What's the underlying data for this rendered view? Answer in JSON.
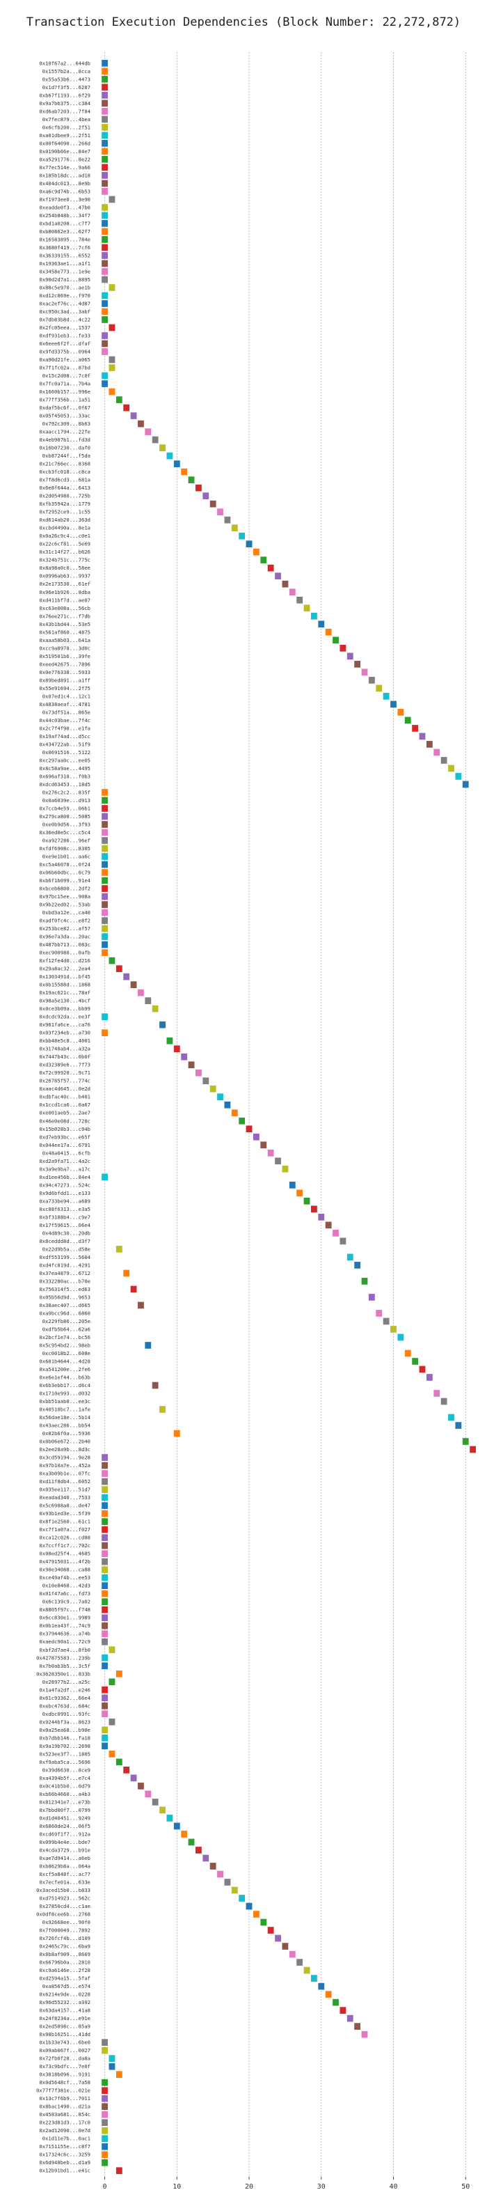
{
  "chart_data": {
    "type": "gantt",
    "title": "Transaction Execution Dependencies (Block Number: 22,272,872)",
    "xlabel": "",
    "ylabel": "",
    "xlim": [
      -1.5,
      52
    ],
    "xticks": [
      0,
      10,
      20,
      30,
      40,
      50
    ],
    "grid": true,
    "palette": [
      "#1f77b4",
      "#ff7f0e",
      "#2ca02c",
      "#d62728",
      "#9467bd",
      "#8c564b",
      "#e377c2",
      "#7f7f7f",
      "#bcbd22",
      "#17becf"
    ],
    "transactions": [
      {
        "label": "0x10f67a2...644db",
        "x": 0
      },
      {
        "label": "0x1557b2a...8cca",
        "x": 0
      },
      {
        "label": "0x55a53b6...4473",
        "x": 0
      },
      {
        "label": "0x1d7f3f5...6287",
        "x": 0
      },
      {
        "label": "0xb67f1193...6f29",
        "x": 0
      },
      {
        "label": "0x9a7bb375...c384",
        "x": 0
      },
      {
        "label": "0xd6ab7203...7f84",
        "x": 0
      },
      {
        "label": "0x7fec879...4bea",
        "x": 0
      },
      {
        "label": "0x6cfb200...2f51",
        "x": 0
      },
      {
        "label": "0xa01dbee9...2f51",
        "x": 0
      },
      {
        "label": "0x00f64090...266d",
        "x": 0
      },
      {
        "label": "0x0190b66e...84e7",
        "x": 0
      },
      {
        "label": "0xa5291776...8e22",
        "x": 0
      },
      {
        "label": "0x77ec514e...9a66",
        "x": 0
      },
      {
        "label": "0x185b18dc...ad18",
        "x": 0
      },
      {
        "label": "0x404dc013...8e9b",
        "x": 0
      },
      {
        "label": "0xa6c9d74b...6b53",
        "x": 0
      },
      {
        "label": "0xf1973ee0...3e90",
        "x": 1
      },
      {
        "label": "0xeadde0f3...47b0",
        "x": 0
      },
      {
        "label": "0x254b848b...34f7",
        "x": 0
      },
      {
        "label": "0xbd1a0208...c7f7",
        "x": 0
      },
      {
        "label": "0xb80862e3...62f7",
        "x": 0
      },
      {
        "label": "0x16583895...784e",
        "x": 0
      },
      {
        "label": "0x3680f419...7cf6",
        "x": 0
      },
      {
        "label": "0x36339155...6552",
        "x": 0
      },
      {
        "label": "0x19363ae1...a1f1",
        "x": 0
      },
      {
        "label": "0x3458e773...1e9e",
        "x": 0
      },
      {
        "label": "0x90d2d7a1...8895",
        "x": 0
      },
      {
        "label": "0x88c5e970...ae1b",
        "x": 1
      },
      {
        "label": "0xd12c869e...f970",
        "x": 0
      },
      {
        "label": "0xac2ef76c...4d87",
        "x": 0
      },
      {
        "label": "0xc950c3ad...3abf",
        "x": 0
      },
      {
        "label": "0x7db83b8d...4c22",
        "x": 0
      },
      {
        "label": "0x2fc05eea...1537",
        "x": 1
      },
      {
        "label": "0xdf931eb3...fe33",
        "x": 0
      },
      {
        "label": "0x6eee6f2f...dfaf",
        "x": 0
      },
      {
        "label": "0x9fd3375b...0964",
        "x": 0
      },
      {
        "label": "0xa90d21fe...a065",
        "x": 1
      },
      {
        "label": "0x7f1fc02a...87bd",
        "x": 1
      },
      {
        "label": "0x15c2d08...7c0f",
        "x": 0
      },
      {
        "label": "0x7fc0a71a...7b4a",
        "x": 0
      },
      {
        "label": "0x1660b157...996e",
        "x": 1
      },
      {
        "label": "0x77ff356b...1a51",
        "x": 2
      },
      {
        "label": "0xdaf5bc6f...0f67",
        "x": 3
      },
      {
        "label": "0x05f45053...33ac",
        "x": 4
      },
      {
        "label": "0x792c309...8b63",
        "x": 5
      },
      {
        "label": "0xaacc1794...22fe",
        "x": 6
      },
      {
        "label": "0x4eb907b1...fd3d",
        "x": 7
      },
      {
        "label": "0x16b07230...daf0",
        "x": 8
      },
      {
        "label": "0xb87244f...f5da",
        "x": 9
      },
      {
        "label": "0x21c766ec...8368",
        "x": 10
      },
      {
        "label": "0xcb3fc018...c8ca",
        "x": 11
      },
      {
        "label": "0x7f8d6cd3...681a",
        "x": 12
      },
      {
        "label": "0x6e8f644a...6413",
        "x": 13
      },
      {
        "label": "0x2d054980...725b",
        "x": 14
      },
      {
        "label": "0xfb35942a...1779",
        "x": 15
      },
      {
        "label": "0xf2952ce9...1c55",
        "x": 16
      },
      {
        "label": "0xd614ab20...363d",
        "x": 17
      },
      {
        "label": "0xcbd4490a...8e1a",
        "x": 18
      },
      {
        "label": "0x0a26c9c4...c0e1",
        "x": 19
      },
      {
        "label": "0x22c6cf81...5e69",
        "x": 20
      },
      {
        "label": "0x31c14f27...b626",
        "x": 21
      },
      {
        "label": "0x324b751c...775c",
        "x": 22
      },
      {
        "label": "0x8a98a0c0...58ee",
        "x": 23
      },
      {
        "label": "0x0996ab63...9937",
        "x": 24
      },
      {
        "label": "0x2e173530...61ef",
        "x": 25
      },
      {
        "label": "0x96e1b926...8dba",
        "x": 26
      },
      {
        "label": "0xd411bf7d...ae07",
        "x": 27
      },
      {
        "label": "0xc63e008a...56cb",
        "x": 28
      },
      {
        "label": "0x76ee271c...f7db",
        "x": 29
      },
      {
        "label": "0x43b1bd44...53e5",
        "x": 30
      },
      {
        "label": "0x561af860...4875",
        "x": 31
      },
      {
        "label": "0xaaa58b03...641a",
        "x": 32
      },
      {
        "label": "0xcc9a8978...3d0c",
        "x": 33
      },
      {
        "label": "0x519501b6...39fe",
        "x": 34
      },
      {
        "label": "0xeed42675...7896",
        "x": 35
      },
      {
        "label": "0x0e776338...5933",
        "x": 36
      },
      {
        "label": "0x89bed891...a1ff",
        "x": 37
      },
      {
        "label": "0x55e91694...2f75",
        "x": 38
      },
      {
        "label": "0x07ed1c4...12c1",
        "x": 39
      },
      {
        "label": "0x4838aeaf...4781",
        "x": 40
      },
      {
        "label": "0x73df51a...865e",
        "x": 41
      },
      {
        "label": "0x44c03bae...7f4c",
        "x": 42
      },
      {
        "label": "0x2c7f4f90...e1fa",
        "x": 43
      },
      {
        "label": "0x19af74ad...d5cc",
        "x": 44
      },
      {
        "label": "0x434722ab...51f9",
        "x": 45
      },
      {
        "label": "0x0691516...5122",
        "x": 46
      },
      {
        "label": "0xc297aa0c...ee05",
        "x": 47
      },
      {
        "label": "0x8c58a9ae...4495",
        "x": 48
      },
      {
        "label": "0x696af318...f0b3",
        "x": 49
      },
      {
        "label": "0xdcd63453...18d5",
        "x": 50
      },
      {
        "label": "0x276c2c2...835f",
        "x": 0
      },
      {
        "label": "0x0a6039e...d913",
        "x": 0
      },
      {
        "label": "0x7ccb4e59...06b1",
        "x": 0
      },
      {
        "label": "0x279ca800...5085",
        "x": 0
      },
      {
        "label": "0xe0b9d56...3f93",
        "x": 0
      },
      {
        "label": "0x36ed0e5c...c5c4",
        "x": 0
      },
      {
        "label": "0xa927286...96ef",
        "x": 0
      },
      {
        "label": "0xfdf6908c...8305",
        "x": 0
      },
      {
        "label": "0xe9e1b01...aa6c",
        "x": 0
      },
      {
        "label": "0xc5a46078...0f24",
        "x": 0
      },
      {
        "label": "0x06b60dbc...0c79",
        "x": 0
      },
      {
        "label": "0xb6f1b099...91e4",
        "x": 0
      },
      {
        "label": "0xbceb6800...2df2",
        "x": 0
      },
      {
        "label": "0x97bc15ee...908a",
        "x": 0
      },
      {
        "label": "0x9b22ed02...53ab",
        "x": 0
      },
      {
        "label": "0xbd3a12e...ca40",
        "x": 0
      },
      {
        "label": "0xadf0fc4c...e8f2",
        "x": 0
      },
      {
        "label": "0x253bce82...af57",
        "x": 0
      },
      {
        "label": "0x96e7a3da...20ac",
        "x": 0
      },
      {
        "label": "0x487bb713...083c",
        "x": 0
      },
      {
        "label": "0xec900980...0afb",
        "x": 0
      },
      {
        "label": "0xf12fe4d0...d216",
        "x": 1
      },
      {
        "label": "0x29a8ac32...2ea4",
        "x": 2
      },
      {
        "label": "0x1303491d...bf45",
        "x": 3
      },
      {
        "label": "0x0b15588d...1868",
        "x": 4
      },
      {
        "label": "0x19ac621c...78af",
        "x": 5
      },
      {
        "label": "0x98a5e130...4bcf",
        "x": 6
      },
      {
        "label": "0x0ce3b09a...bb99",
        "x": 7
      },
      {
        "label": "0xdcdc92da...ee3f",
        "x": 0
      },
      {
        "label": "0x961fa6ce...ca76",
        "x": 8
      },
      {
        "label": "0x03f234eb...a730",
        "x": 0
      },
      {
        "label": "0xbb48e5c8...4001",
        "x": 9
      },
      {
        "label": "0x31748ab4...a32a",
        "x": 10
      },
      {
        "label": "0x7447b43c...0b0f",
        "x": 11
      },
      {
        "label": "0xd32389e6...7f73",
        "x": 12
      },
      {
        "label": "0x72c99920...9c71",
        "x": 13
      },
      {
        "label": "0x26785f57...774c",
        "x": 14
      },
      {
        "label": "0xaac4d645...0e2d",
        "x": 15
      },
      {
        "label": "0xdbfac40c...b401",
        "x": 16
      },
      {
        "label": "0x1ccd1ca6...0a67",
        "x": 17
      },
      {
        "label": "0xe001aeb5...2ae7",
        "x": 18
      },
      {
        "label": "0x46e0e08d...728c",
        "x": 19
      },
      {
        "label": "0x15b028b3...c94b",
        "x": 20
      },
      {
        "label": "0xd7eb93bc...e65f",
        "x": 21
      },
      {
        "label": "0x044ee17a...6791",
        "x": 22
      },
      {
        "label": "0x48a0415...6cfb",
        "x": 23
      },
      {
        "label": "0xd2a9fa71...4a2c",
        "x": 24
      },
      {
        "label": "0x3a9e9ba7...a17c",
        "x": 25
      },
      {
        "label": "0xd1ee456b...84e4",
        "x": 0
      },
      {
        "label": "0x94c47273...524c",
        "x": 26
      },
      {
        "label": "0x9d6bfdd1...e133",
        "x": 27
      },
      {
        "label": "0xa733be94...a689",
        "x": 28
      },
      {
        "label": "0xc88f6313...e3a5",
        "x": 29
      },
      {
        "label": "0xbf3188b4...c9e7",
        "x": 30
      },
      {
        "label": "0x17f59615...06e4",
        "x": 31
      },
      {
        "label": "0x4d89c30...20db",
        "x": 32
      },
      {
        "label": "0x8ceddd8d...d3f7",
        "x": 33
      },
      {
        "label": "0x22d9b5a...d58e",
        "x": 2
      },
      {
        "label": "0xdf553199...5604",
        "x": 34
      },
      {
        "label": "0xd4fc819d...4291",
        "x": 35
      },
      {
        "label": "0x37ea4879...6712",
        "x": 3
      },
      {
        "label": "0x332280ac...b70e",
        "x": 36
      },
      {
        "label": "0x756314f5...ed63",
        "x": 4
      },
      {
        "label": "0x05b56d9d...9653",
        "x": 37
      },
      {
        "label": "0x38aec407...d665",
        "x": 5
      },
      {
        "label": "0xa9bcc96d...6860",
        "x": 38
      },
      {
        "label": "0x229fb86...205e",
        "x": 39
      },
      {
        "label": "0xdfb5b64...62a6",
        "x": 40
      },
      {
        "label": "0x2bcf1e74...bc56",
        "x": 41
      },
      {
        "label": "0x5c954bd2...98eb",
        "x": 6
      },
      {
        "label": "0xc0018b2...608e",
        "x": 42
      },
      {
        "label": "0x601b4644...4d28",
        "x": 43
      },
      {
        "label": "0xa541200e...2fe6",
        "x": 44
      },
      {
        "label": "0xe6e1ef44...b63b",
        "x": 45
      },
      {
        "label": "0x6b3ebb17...d6c4",
        "x": 7
      },
      {
        "label": "0x1710e993...d032",
        "x": 46
      },
      {
        "label": "0xbb51aab0...ee3c",
        "x": 47
      },
      {
        "label": "0x40510bc7...1afe",
        "x": 8
      },
      {
        "label": "0x56dae18e...5b14",
        "x": 48
      },
      {
        "label": "0x43aec286...bb54",
        "x": 49
      },
      {
        "label": "0x82b6f0a...5936",
        "x": 10
      },
      {
        "label": "0x0b06e672...2b40",
        "x": 50
      },
      {
        "label": "0x2ee28a9b...8d3c",
        "x": 51
      },
      {
        "label": "0x3cd59194...9e28",
        "x": 0
      },
      {
        "label": "0x97b10a7e...452a",
        "x": 0
      },
      {
        "label": "0xa3b09b1e...07fc",
        "x": 0
      },
      {
        "label": "0xd11f8db4...6052",
        "x": 0
      },
      {
        "label": "0x035ee117...51d7",
        "x": 0
      },
      {
        "label": "0xeadad340...7533",
        "x": 0
      },
      {
        "label": "0x5c6988a8...de47",
        "x": 0
      },
      {
        "label": "0x93b1ed3e...5f39",
        "x": 0
      },
      {
        "label": "0x8f1e2560...61c1",
        "x": 0
      },
      {
        "label": "0xc7f1a07a...f027",
        "x": 0
      },
      {
        "label": "0xca12c026...cd88",
        "x": 0
      },
      {
        "label": "0x7ccff1c7...702c",
        "x": 0
      },
      {
        "label": "0x08ed25f4...4685",
        "x": 0
      },
      {
        "label": "0x47915031...4f2b",
        "x": 0
      },
      {
        "label": "0x90e34088...ca88",
        "x": 0
      },
      {
        "label": "0xce49af4b...ee53",
        "x": 0
      },
      {
        "label": "0x10e8468...42d3",
        "x": 0
      },
      {
        "label": "0x01f47a6c...fd73",
        "x": 0
      },
      {
        "label": "0x6c139c9...7a02",
        "x": 0
      },
      {
        "label": "0x8805f97c...f748",
        "x": 0
      },
      {
        "label": "0x6cc830e1...9989",
        "x": 0
      },
      {
        "label": "0x0b1ea43f...74c9",
        "x": 0
      },
      {
        "label": "0x37944636...a74b",
        "x": 0
      },
      {
        "label": "0xaedc90a1...72c9",
        "x": 0
      },
      {
        "label": "0xbf2d7ae4...8fb0",
        "x": 1
      },
      {
        "label": "0x427875583...239b",
        "x": 0
      },
      {
        "label": "0x7b0ab3b5...3c5f",
        "x": 0
      },
      {
        "label": "0x3628350e1...833b",
        "x": 2
      },
      {
        "label": "0x28977b2...a25c",
        "x": 1
      },
      {
        "label": "0x1a4fa2df...e246",
        "x": 0
      },
      {
        "label": "0x61c93362...66e4",
        "x": 0
      },
      {
        "label": "0xebc4763d...684c",
        "x": 0
      },
      {
        "label": "0xdbc0991...93fc",
        "x": 0
      },
      {
        "label": "0x9244bf3a...8623",
        "x": 1
      },
      {
        "label": "0x0a25ea68...b90e",
        "x": 0
      },
      {
        "label": "0xb7dbb146...fa18",
        "x": 0
      },
      {
        "label": "0x9a19b702...2698",
        "x": 0
      },
      {
        "label": "0x523ee3f7...1805",
        "x": 1
      },
      {
        "label": "0xf9aba5ca...5696",
        "x": 2
      },
      {
        "label": "0x39d6630...8ce9",
        "x": 3
      },
      {
        "label": "0xa4394b5f...e7c4",
        "x": 4
      },
      {
        "label": "0x0c41b5b0...0d79",
        "x": 5
      },
      {
        "label": "0xb66b4660...a4b3",
        "x": 6
      },
      {
        "label": "0x812341e7...e73b",
        "x": 7
      },
      {
        "label": "0x7bbd00f7...0799",
        "x": 8
      },
      {
        "label": "0xd1d40451...9249",
        "x": 9
      },
      {
        "label": "0x6860de24...06f5",
        "x": 10
      },
      {
        "label": "0xcd69f1f7...912a",
        "x": 11
      },
      {
        "label": "0x099b4e4e...bde7",
        "x": 12
      },
      {
        "label": "0x4cda3729...b91e",
        "x": 13
      },
      {
        "label": "0xae7d9414...a6eb",
        "x": 14
      },
      {
        "label": "0xb8629b8a...064a",
        "x": 15
      },
      {
        "label": "0xcf5a848f...ac77",
        "x": 16
      },
      {
        "label": "0x7ecfe01a...633e",
        "x": 17
      },
      {
        "label": "0x3aced15b0...b833",
        "x": 18
      },
      {
        "label": "0xd7514923...562c",
        "x": 19
      },
      {
        "label": "0x27850cd4...c1ae",
        "x": 20
      },
      {
        "label": "0x0df8cee6b...2768",
        "x": 21
      },
      {
        "label": "0x92668ee...90f0",
        "x": 22
      },
      {
        "label": "0x7f000049...7892",
        "x": 23
      },
      {
        "label": "0x726fcf4b...d109",
        "x": 24
      },
      {
        "label": "0x2465c79c...6ba9",
        "x": 25
      },
      {
        "label": "0x8b8af909...8669",
        "x": 26
      },
      {
        "label": "0x66796b0a...2810",
        "x": 27
      },
      {
        "label": "0xc9a6146e...2f28",
        "x": 28
      },
      {
        "label": "0xd2594a15...5faf",
        "x": 29
      },
      {
        "label": "0xa8567d5...e574",
        "x": 30
      },
      {
        "label": "0x6214e9de...0228",
        "x": 31
      },
      {
        "label": "0x96d55232...a392",
        "x": 32
      },
      {
        "label": "0x63da4157...41a8",
        "x": 33
      },
      {
        "label": "0x24f8234a...e91e",
        "x": 34
      },
      {
        "label": "0x2ed5898c...85a9",
        "x": 35
      },
      {
        "label": "0x98b16251...41dd",
        "x": 36
      },
      {
        "label": "0x1b33e743...6be0",
        "x": 0
      },
      {
        "label": "0x09ab067f...0027",
        "x": 0
      },
      {
        "label": "0x72fb0f28...da8a",
        "x": 1
      },
      {
        "label": "0x73c9bdfc...7e0f",
        "x": 1
      },
      {
        "label": "0x3818b096...9191",
        "x": 2
      },
      {
        "label": "0x0d5648cf...7a58",
        "x": 0
      },
      {
        "label": "0x77f7f381e...021e",
        "x": 0
      },
      {
        "label": "0x13c7f6b9...7011",
        "x": 0
      },
      {
        "label": "0x8bac1490...d21a",
        "x": 0
      },
      {
        "label": "0x4583a681...854c",
        "x": 0
      },
      {
        "label": "0x223d81d3...17c0",
        "x": 0
      },
      {
        "label": "0x2ad12090...0e7d",
        "x": 0
      },
      {
        "label": "0x1d11e7b...0ac1",
        "x": 0
      },
      {
        "label": "0x7151155e...c8f7",
        "x": 0
      },
      {
        "label": "0x17324c6c...3259",
        "x": 0
      },
      {
        "label": "0x6d948beb...d1a9",
        "x": 0
      },
      {
        "label": "0x12b91bd1...e41c",
        "x": 2
      }
    ]
  }
}
